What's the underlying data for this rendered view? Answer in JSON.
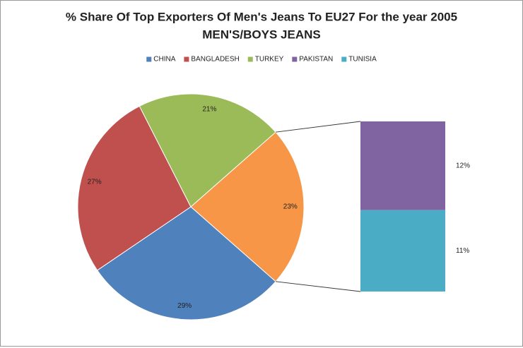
{
  "chart_data": {
    "type": "bar-of-pie",
    "title": "% Share Of Top Exporters Of Men's Jeans To EU27 For the year 2005",
    "subtitle": "MEN'S/BOYS JEANS",
    "pie_categories": [
      "CHINA",
      "BANGLADESH",
      "TURKEY",
      null
    ],
    "pie_values": [
      29,
      27,
      21,
      23
    ],
    "pie_value_labels": [
      "29%",
      "27%",
      "21%",
      "23%"
    ],
    "pie_colors": [
      "#4f81bd",
      "#c0504d",
      "#9bbb59",
      "#f79646"
    ],
    "bar_categories": [
      "PAKISTAN",
      "TUNISIA"
    ],
    "bar_values": [
      12,
      11
    ],
    "bar_value_labels": [
      "12%",
      "11%"
    ],
    "bar_colors": [
      "#8064a2",
      "#4bacc6"
    ],
    "legend": "top"
  }
}
